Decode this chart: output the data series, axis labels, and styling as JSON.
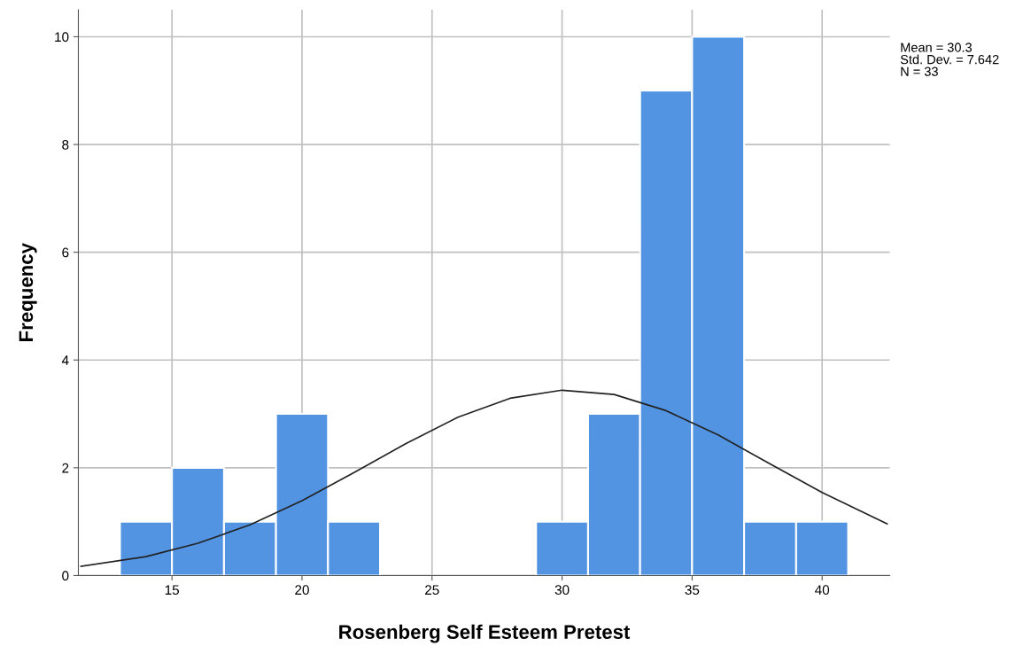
{
  "chart_data": {
    "type": "histogram",
    "xlabel": "Rosenberg Self Esteem Pretest",
    "ylabel": "Frequency",
    "annotations": [
      "Mean = 30.3",
      "Std. Dev. = 7.642",
      "N = 33"
    ],
    "xlim": [
      11.4,
      42.6
    ],
    "xticks": [
      15,
      20,
      25,
      30,
      35,
      40
    ],
    "ylim": [
      0,
      10.5
    ],
    "yticks": [
      0,
      2,
      4,
      6,
      8,
      10
    ],
    "grid": true,
    "legend": false,
    "color": "#5294e2",
    "bins": [
      13,
      15,
      17,
      19,
      21,
      23,
      25,
      27,
      29,
      31,
      33,
      35,
      37,
      39,
      41
    ],
    "values": [
      1,
      2,
      1,
      3,
      1,
      0,
      0,
      0,
      1,
      3,
      9,
      10,
      1,
      1
    ],
    "series": [
      {
        "type": "line",
        "color": "#222222",
        "x": [
          11.5,
          14,
          16,
          18,
          20,
          22,
          24,
          26,
          28,
          30,
          32,
          34,
          36,
          38,
          40,
          42.5
        ],
        "values": [
          0.17,
          0.35,
          0.6,
          0.94,
          1.39,
          1.91,
          2.45,
          2.94,
          3.29,
          3.44,
          3.36,
          3.06,
          2.61,
          2.07,
          1.54,
          0.96
        ]
      }
    ]
  }
}
